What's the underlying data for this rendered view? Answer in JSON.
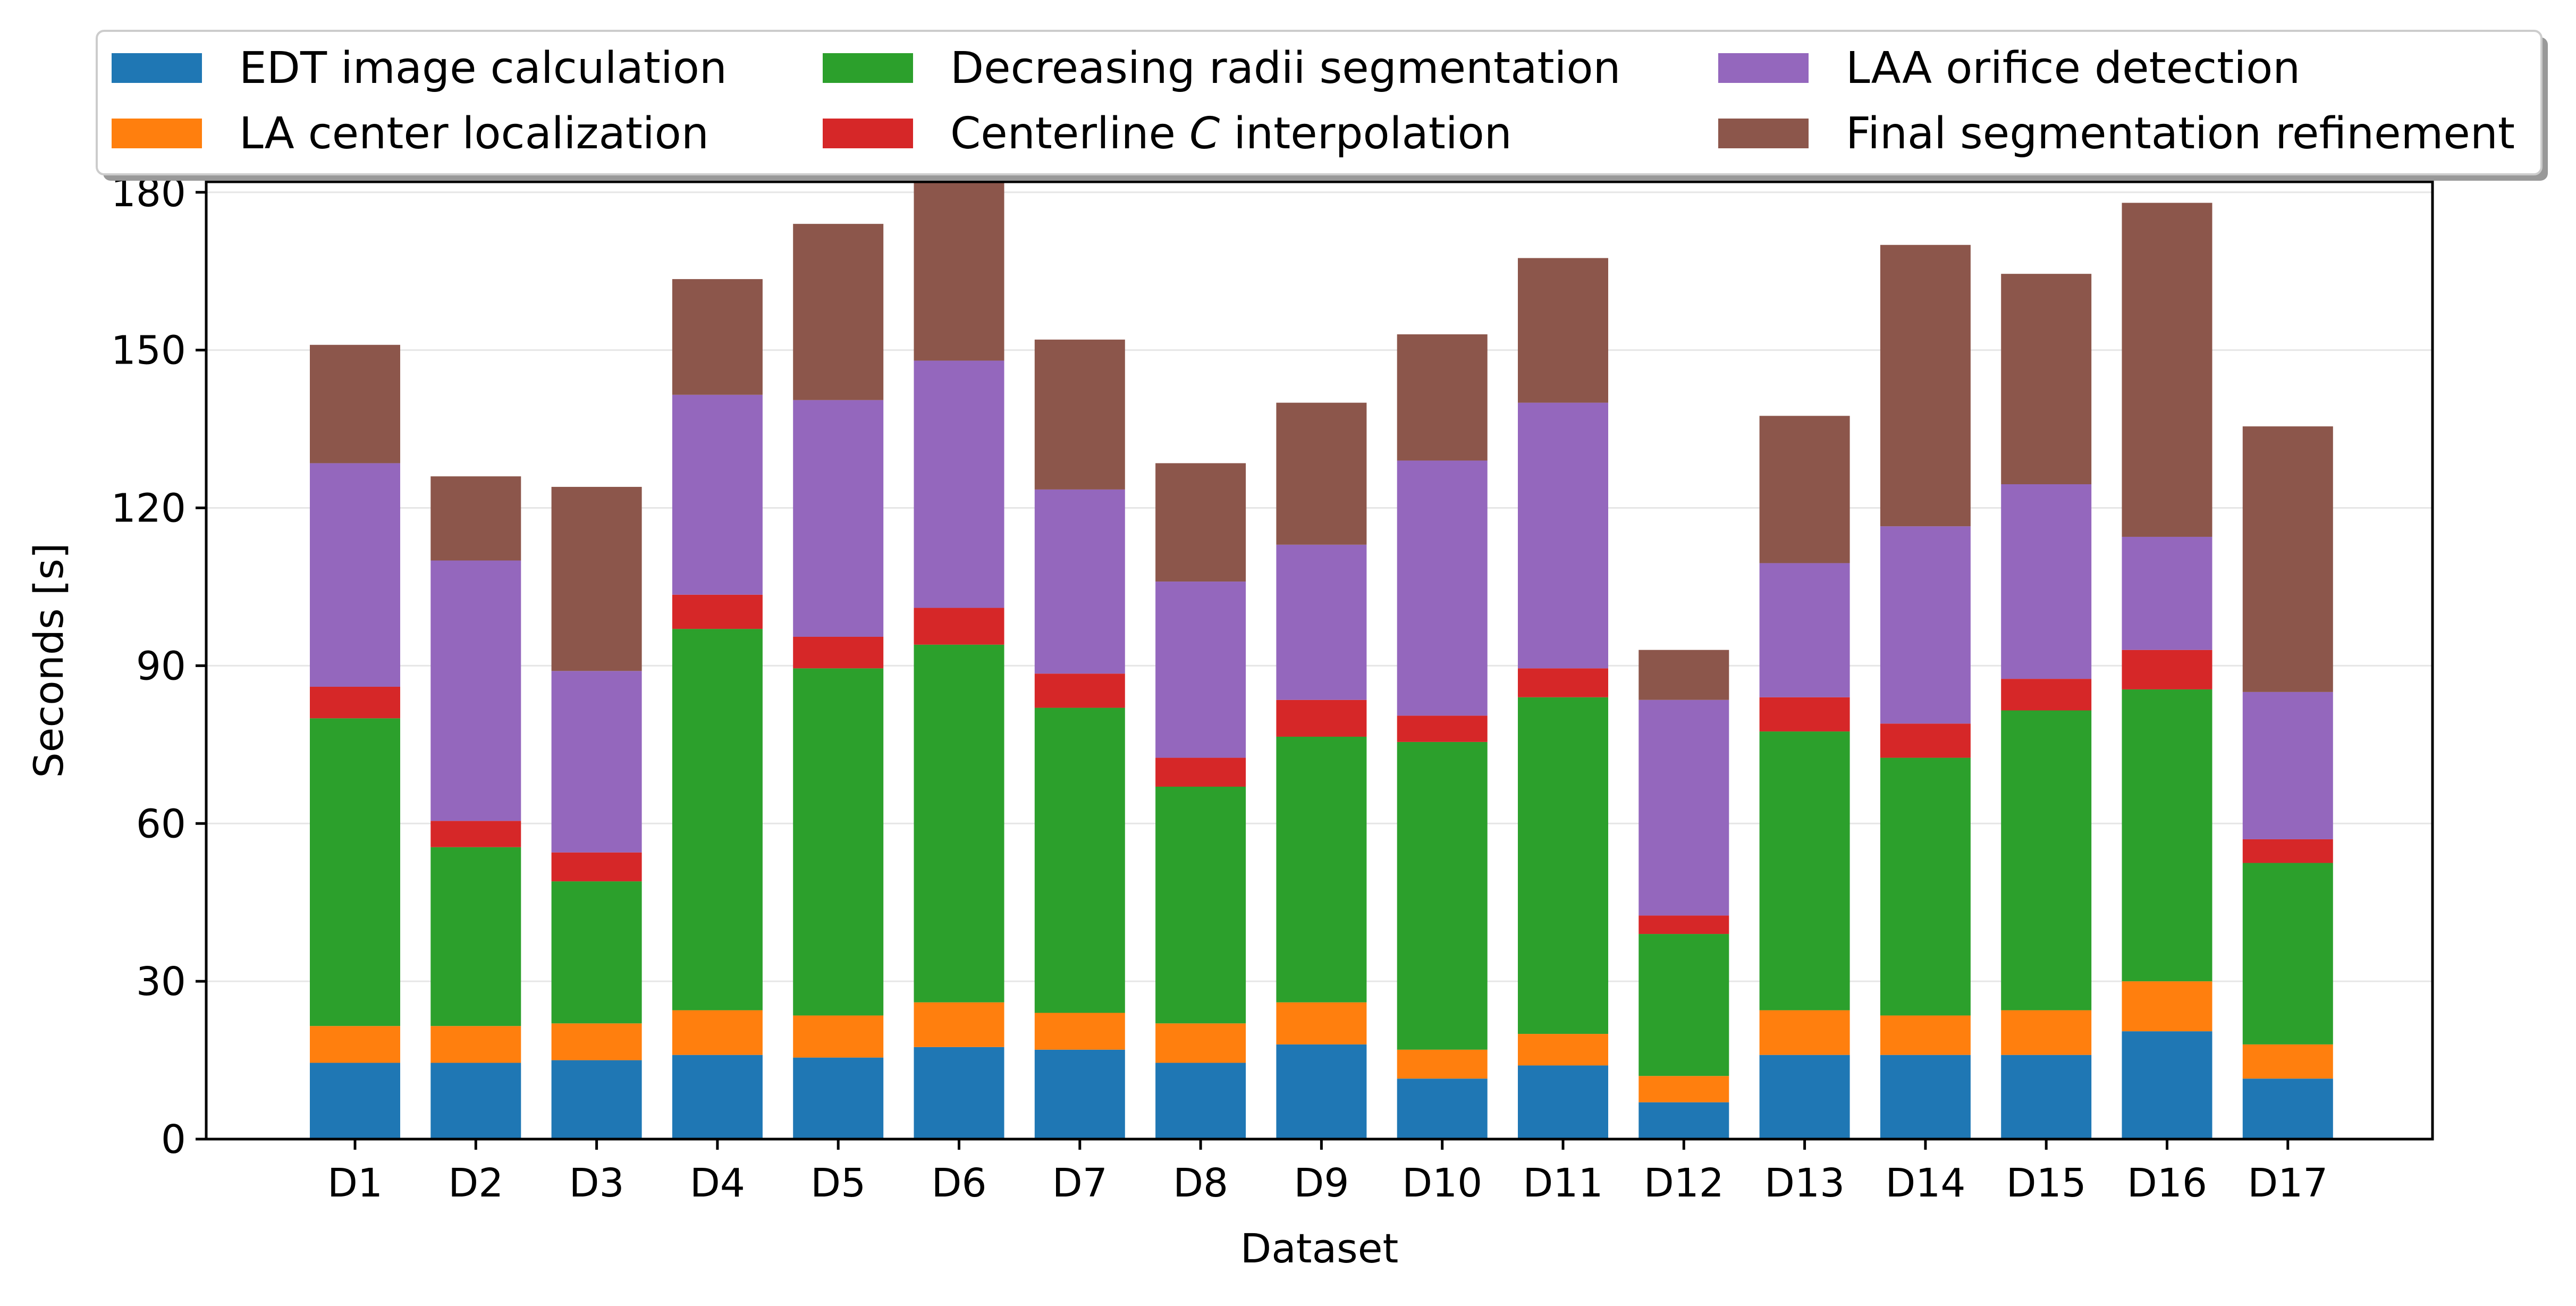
{
  "chart_data": {
    "type": "bar",
    "stacked": true,
    "xlabel": "Dataset",
    "ylabel": "Seconds [s]",
    "ylim": [
      0,
      182
    ],
    "yticks": [
      0,
      30,
      60,
      90,
      120,
      150,
      180
    ],
    "grid": "horizontal",
    "legend_position": "top",
    "categories": [
      "D1",
      "D2",
      "D3",
      "D4",
      "D5",
      "D6",
      "D7",
      "D8",
      "D9",
      "D10",
      "D11",
      "D12",
      "D13",
      "D14",
      "D15",
      "D16",
      "D17"
    ],
    "series": [
      {
        "name": "EDT image calculation",
        "color": "#1f77b4",
        "values": [
          14.5,
          14.5,
          15,
          16,
          15.5,
          17.5,
          17,
          14.5,
          18,
          11.5,
          14,
          7,
          16,
          16,
          16,
          20.5,
          11.5
        ]
      },
      {
        "name": "LA center localization",
        "color": "#ff7f0e",
        "values": [
          7,
          7,
          7,
          8.5,
          8,
          8.5,
          7,
          7.5,
          8,
          5.5,
          6,
          5,
          8.5,
          7.5,
          8.5,
          9.5,
          6.5
        ]
      },
      {
        "name": "Decreasing radii segmentation",
        "color": "#2ca02c",
        "values": [
          58.5,
          34,
          27,
          72.5,
          66,
          68,
          58,
          45,
          50.5,
          58.5,
          64,
          27,
          53,
          49,
          57,
          55.5,
          34.5
        ]
      },
      {
        "name": "Centerline C interpolation",
        "color": "#d62728",
        "values": [
          6,
          5,
          5.5,
          6.5,
          6,
          7,
          6.5,
          5.5,
          7,
          5,
          5.5,
          3.5,
          6.5,
          6.5,
          6,
          7.5,
          4.5
        ]
      },
      {
        "name": "LAA orifice detection",
        "color": "#9467bd",
        "values": [
          42.5,
          49.5,
          34.5,
          38,
          45,
          47,
          35,
          33.5,
          29.5,
          48.5,
          50.5,
          41,
          25.5,
          37.5,
          37,
          21.5,
          28
        ]
      },
      {
        "name": "Final segmentation refinement",
        "color": "#8c564b",
        "values": [
          22.5,
          16,
          35,
          22,
          33.5,
          34,
          28.5,
          22.5,
          27,
          24,
          27.5,
          9.5,
          28,
          53.5,
          40,
          63.5,
          50.5
        ]
      }
    ]
  }
}
